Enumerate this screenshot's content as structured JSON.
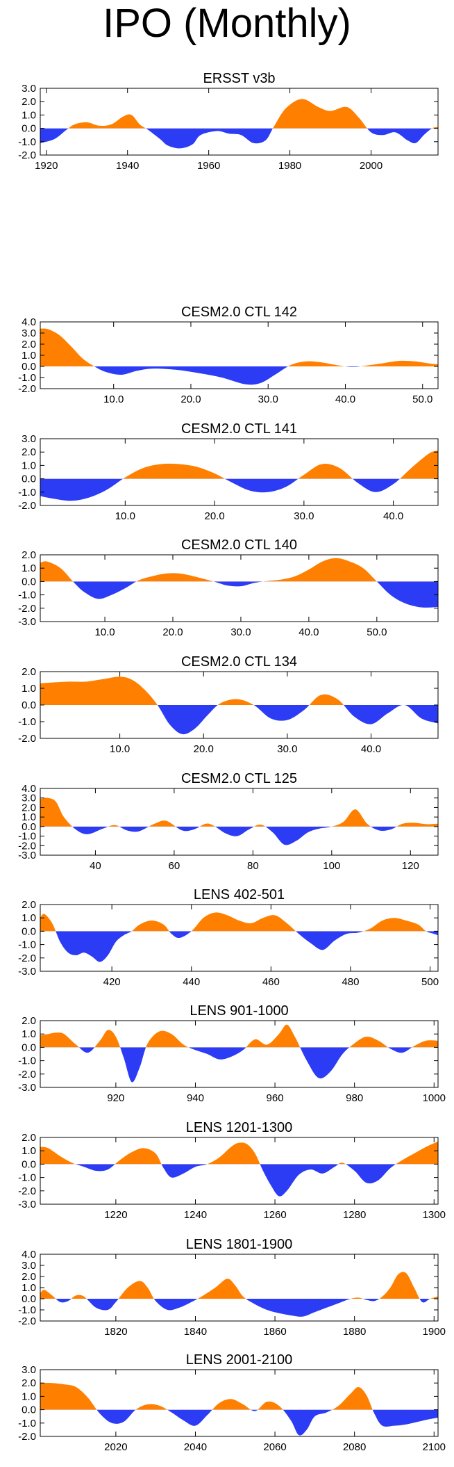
{
  "page_title": "IPO (Monthly)",
  "colors": {
    "positive": "#FF8000",
    "negative": "#2C3CF5",
    "axis": "#000000"
  },
  "chart_data": [
    {
      "type": "area",
      "title": "ERSST v3b",
      "xlim": [
        1918.5,
        2016.5
      ],
      "ylim": [
        -2.0,
        3.0
      ],
      "xticks": [
        1920,
        1940,
        1960,
        1980,
        2000
      ],
      "xtick_labels": [
        "1920",
        "1940",
        "1960",
        "1980",
        "2000"
      ],
      "yticks": [
        -2.0,
        -1.0,
        0.0,
        1.0,
        2.0,
        3.0
      ],
      "ytick_labels": [
        "-2.0",
        "-1.0",
        "0.0",
        "1.0",
        "2.0",
        "3.0"
      ],
      "x": [
        1918.5,
        1922,
        1925,
        1927,
        1930,
        1933,
        1936,
        1939,
        1941,
        1943,
        1945,
        1948,
        1950,
        1953,
        1956,
        1958,
        1962,
        1965,
        1968,
        1971,
        1974,
        1976,
        1979,
        1983,
        1987,
        1990,
        1994,
        1997,
        2000,
        2003,
        2006,
        2009,
        2011,
        2013,
        2015,
        2016.5
      ],
      "y": [
        -1.1,
        -0.8,
        -0.1,
        0.3,
        0.45,
        0.2,
        0.3,
        0.9,
        1.0,
        0.3,
        -0.1,
        -0.8,
        -1.3,
        -1.5,
        -1.2,
        -0.5,
        -0.2,
        -0.4,
        -0.5,
        -1.1,
        -0.9,
        0.1,
        1.5,
        2.2,
        1.6,
        1.3,
        1.6,
        0.8,
        -0.3,
        -0.5,
        -0.3,
        -0.9,
        -1.1,
        -0.5,
        0.0,
        0.1
      ]
    },
    {
      "type": "area",
      "title": "CESM2.0 CTL 142",
      "xlim": [
        0.5,
        52.0
      ],
      "ylim": [
        -2.0,
        4.0
      ],
      "xticks": [
        10,
        20,
        30,
        40,
        50
      ],
      "xtick_labels": [
        "10.0",
        "20.0",
        "30.0",
        "40.0",
        "50.0"
      ],
      "yticks": [
        -2.0,
        -1.0,
        0.0,
        1.0,
        2.0,
        3.0,
        4.0
      ],
      "ytick_labels": [
        "-2.0",
        "-1.0",
        "0.0",
        "1.0",
        "2.0",
        "3.0",
        "4.0"
      ],
      "x": [
        0.5,
        1.5,
        3,
        4.5,
        6,
        7.5,
        9,
        11,
        13,
        15,
        18,
        21,
        24,
        27,
        29,
        31,
        33,
        35,
        37,
        39,
        41,
        43,
        45,
        47,
        49,
        51,
        52
      ],
      "y": [
        3.4,
        3.35,
        2.8,
        1.8,
        0.7,
        0.0,
        -0.5,
        -0.75,
        -0.4,
        -0.2,
        -0.3,
        -0.6,
        -1.0,
        -1.6,
        -1.5,
        -0.7,
        0.15,
        0.45,
        0.35,
        0.1,
        -0.05,
        0.1,
        0.3,
        0.5,
        0.45,
        0.25,
        0.2
      ]
    },
    {
      "type": "area",
      "title": "CESM2.0 CTL 141",
      "xlim": [
        0.5,
        45.0
      ],
      "ylim": [
        -2.0,
        3.0
      ],
      "xticks": [
        10,
        20,
        30,
        40
      ],
      "xtick_labels": [
        "10.0",
        "20.0",
        "30.0",
        "40.0"
      ],
      "yticks": [
        -2.0,
        -1.0,
        0.0,
        1.0,
        2.0,
        3.0
      ],
      "ytick_labels": [
        "-2.0",
        "-1.0",
        "0.0",
        "1.0",
        "2.0",
        "3.0"
      ],
      "x": [
        0.5,
        2,
        4,
        6,
        8,
        10,
        12,
        14,
        16,
        18,
        20,
        22,
        24,
        26,
        28,
        30,
        32,
        34,
        36,
        38,
        40,
        42,
        44,
        45
      ],
      "y": [
        -1.3,
        -1.5,
        -1.65,
        -1.4,
        -0.8,
        0.1,
        0.8,
        1.1,
        1.1,
        0.9,
        0.4,
        -0.3,
        -0.9,
        -1.0,
        -0.6,
        0.3,
        1.1,
        0.8,
        -0.3,
        -1.0,
        -0.4,
        0.8,
        1.9,
        2.1
      ]
    },
    {
      "type": "area",
      "title": "CESM2.0 CTL 140",
      "xlim": [
        0.5,
        59.0
      ],
      "ylim": [
        -3.0,
        2.0
      ],
      "xticks": [
        10,
        20,
        30,
        40,
        50
      ],
      "xtick_labels": [
        "10.0",
        "20.0",
        "30.0",
        "40.0",
        "50.0"
      ],
      "yticks": [
        -3.0,
        -2.0,
        -1.0,
        0.0,
        1.0,
        2.0
      ],
      "ytick_labels": [
        "-3.0",
        "-2.0",
        "-1.0",
        "0.0",
        "1.0",
        "2.0"
      ],
      "x": [
        0.5,
        1.5,
        3.5,
        5.5,
        7,
        9,
        11,
        13,
        15,
        17,
        19,
        21,
        23,
        26,
        28,
        30,
        32,
        34,
        36,
        38,
        40,
        42,
        44,
        46,
        48,
        50,
        52,
        54,
        56,
        57.5,
        59
      ],
      "y": [
        1.4,
        1.5,
        1.0,
        -0.1,
        -0.8,
        -1.3,
        -1.0,
        -0.5,
        0.1,
        0.4,
        0.6,
        0.6,
        0.4,
        0.0,
        -0.3,
        -0.35,
        -0.1,
        0.05,
        0.15,
        0.4,
        0.9,
        1.5,
        1.75,
        1.5,
        1.0,
        0.0,
        -1.0,
        -1.6,
        -1.9,
        -1.95,
        -1.9
      ]
    },
    {
      "type": "area",
      "title": "CESM2.0 CTL 134",
      "xlim": [
        0.5,
        48.0
      ],
      "ylim": [
        -2.0,
        2.0
      ],
      "xticks": [
        10,
        20,
        30,
        40
      ],
      "xtick_labels": [
        "10.0",
        "20.0",
        "30.0",
        "40.0"
      ],
      "yticks": [
        -2.0,
        -1.0,
        0.0,
        1.0,
        2.0
      ],
      "ytick_labels": [
        "-2.0",
        "-1.0",
        "0.0",
        "1.0",
        "2.0"
      ],
      "x": [
        0.5,
        2,
        4,
        6,
        8,
        10,
        11.5,
        13,
        14.5,
        16,
        17.5,
        19,
        20.5,
        22,
        24,
        26,
        28,
        30,
        32,
        34,
        36,
        38,
        40,
        42,
        44,
        46,
        48
      ],
      "y": [
        1.3,
        1.35,
        1.4,
        1.4,
        1.55,
        1.7,
        1.5,
        0.9,
        0.0,
        -1.2,
        -1.75,
        -1.4,
        -0.6,
        0.1,
        0.35,
        0.0,
        -0.8,
        -0.9,
        -0.3,
        0.6,
        0.35,
        -0.7,
        -1.15,
        -0.5,
        0.0,
        -0.8,
        -1.1
      ]
    },
    {
      "type": "area",
      "title": "CESM2.0 CTL 125",
      "xlim": [
        26,
        127
      ],
      "ylim": [
        -3.0,
        4.0
      ],
      "xticks": [
        40,
        60,
        80,
        100,
        120
      ],
      "xtick_labels": [
        "40",
        "60",
        "80",
        "100",
        "120"
      ],
      "yticks": [
        -3.0,
        -2.0,
        -1.0,
        0.0,
        1.0,
        2.0,
        3.0,
        4.0
      ],
      "ytick_labels": [
        "-3.0",
        "-2.0",
        "-1.0",
        "0.0",
        "1.0",
        "2.0",
        "3.0",
        "4.0"
      ],
      "x": [
        26,
        28,
        30,
        32,
        35,
        38,
        42,
        45,
        48,
        51,
        55,
        58,
        62,
        65,
        68,
        70,
        73,
        76,
        79,
        82,
        85,
        88,
        91,
        94,
        97,
        100,
        103,
        106,
        109,
        112,
        115,
        118,
        121,
        124,
        127
      ],
      "y": [
        2.9,
        3.0,
        2.6,
        1.0,
        -0.3,
        -0.8,
        -0.2,
        0.15,
        -0.4,
        -0.5,
        0.3,
        0.6,
        -0.4,
        -0.3,
        0.3,
        0.1,
        -0.7,
        -1.0,
        -0.3,
        0.2,
        -0.6,
        -1.9,
        -1.5,
        -0.6,
        -0.2,
        0.0,
        0.5,
        1.8,
        0.3,
        -0.4,
        -0.3,
        0.3,
        0.4,
        0.25,
        0.3
      ]
    },
    {
      "type": "area",
      "title": "LENS 402-501",
      "xlim": [
        402,
        502
      ],
      "ylim": [
        -3.0,
        2.0
      ],
      "xticks": [
        420,
        440,
        460,
        480,
        500
      ],
      "xtick_labels": [
        "420",
        "440",
        "460",
        "480",
        "500"
      ],
      "yticks": [
        -3.0,
        -2.0,
        -1.0,
        0.0,
        1.0,
        2.0
      ],
      "ytick_labels": [
        "-3.0",
        "-2.0",
        "-1.0",
        "0.0",
        "1.0",
        "2.0"
      ],
      "x": [
        402,
        403,
        405,
        407,
        409,
        411,
        413,
        415,
        417,
        419,
        421,
        423,
        425,
        427,
        430,
        433,
        435,
        437,
        440,
        443,
        446,
        449,
        452,
        455,
        458,
        461,
        464,
        467,
        470,
        473,
        476,
        479,
        482,
        485,
        488,
        491,
        494,
        497,
        499,
        501,
        502
      ],
      "y": [
        1.0,
        1.3,
        0.6,
        -0.8,
        -1.6,
        -1.8,
        -1.6,
        -1.9,
        -2.3,
        -1.8,
        -0.8,
        -0.3,
        0.0,
        0.5,
        0.8,
        0.5,
        -0.2,
        -0.5,
        0.0,
        1.0,
        1.4,
        1.2,
        0.8,
        0.6,
        1.0,
        1.2,
        0.6,
        -0.2,
        -0.9,
        -1.4,
        -0.7,
        -0.2,
        -0.1,
        0.2,
        0.8,
        1.0,
        0.8,
        0.5,
        0.0,
        -0.2,
        -0.3
      ]
    },
    {
      "type": "area",
      "title": "LENS 901-1000",
      "xlim": [
        901,
        1001
      ],
      "ylim": [
        -3.0,
        2.0
      ],
      "xticks": [
        920,
        940,
        960,
        980,
        1000
      ],
      "xtick_labels": [
        "920",
        "940",
        "960",
        "980",
        "1000"
      ],
      "yticks": [
        -3.0,
        -2.0,
        -1.0,
        0.0,
        1.0,
        2.0
      ],
      "ytick_labels": [
        "-3.0",
        "-2.0",
        "-1.0",
        "0.0",
        "1.0",
        "2.0"
      ],
      "x": [
        901,
        903,
        905,
        907,
        910,
        913,
        916,
        918,
        920,
        922,
        924,
        926,
        928,
        931,
        934,
        937,
        940,
        943,
        946,
        949,
        952,
        955,
        958,
        961,
        963,
        965,
        968,
        971,
        974,
        977,
        980,
        983,
        986,
        989,
        992,
        995,
        998,
        1001
      ],
      "y": [
        0.9,
        1.0,
        1.1,
        1.0,
        0.2,
        -0.4,
        0.5,
        1.3,
        0.8,
        -0.8,
        -2.6,
        -1.5,
        0.3,
        1.2,
        1.0,
        0.2,
        -0.2,
        -0.5,
        -0.9,
        -0.7,
        -0.2,
        0.6,
        0.2,
        1.0,
        1.7,
        0.8,
        -1.0,
        -2.3,
        -1.8,
        -0.5,
        0.3,
        0.8,
        0.5,
        -0.1,
        -0.4,
        0.1,
        0.5,
        0.5
      ]
    },
    {
      "type": "area",
      "title": "LENS 1201-1300",
      "xlim": [
        1201,
        1301
      ],
      "ylim": [
        -3.0,
        2.0
      ],
      "xticks": [
        1220,
        1240,
        1260,
        1280,
        1300
      ],
      "xtick_labels": [
        "1220",
        "1240",
        "1260",
        "1280",
        "1300"
      ],
      "yticks": [
        -3.0,
        -2.0,
        -1.0,
        0.0,
        1.0,
        2.0
      ],
      "ytick_labels": [
        "-3.0",
        "-2.0",
        "-1.0",
        "0.0",
        "1.0",
        "2.0"
      ],
      "x": [
        1201,
        1203,
        1206,
        1209,
        1212,
        1215,
        1218,
        1221,
        1224,
        1227,
        1230,
        1232,
        1234,
        1237,
        1240,
        1243,
        1246,
        1249,
        1251,
        1253,
        1255,
        1257,
        1259,
        1261,
        1263,
        1266,
        1269,
        1272,
        1275,
        1277,
        1280,
        1283,
        1286,
        1289,
        1292,
        1295,
        1298,
        1301
      ],
      "y": [
        1.3,
        1.2,
        0.6,
        0.1,
        -0.2,
        -0.5,
        -0.4,
        0.3,
        0.9,
        1.2,
        0.8,
        -0.3,
        -1.0,
        -0.7,
        -0.2,
        0.0,
        0.5,
        1.3,
        1.6,
        1.5,
        0.8,
        -0.5,
        -1.6,
        -2.4,
        -2.0,
        -0.8,
        -0.4,
        -0.7,
        -0.2,
        0.1,
        -0.5,
        -1.4,
        -1.2,
        -0.3,
        0.3,
        0.8,
        1.3,
        1.7
      ]
    },
    {
      "type": "area",
      "title": "LENS 1801-1900",
      "xlim": [
        1801,
        1901
      ],
      "ylim": [
        -2.0,
        4.0
      ],
      "xticks": [
        1820,
        1840,
        1860,
        1880,
        1900
      ],
      "xtick_labels": [
        "1820",
        "1840",
        "1860",
        "1880",
        "1900"
      ],
      "yticks": [
        -2.0,
        -1.0,
        0.0,
        1.0,
        2.0,
        3.0,
        4.0
      ],
      "ytick_labels": [
        "-2.0",
        "-1.0",
        "0.0",
        "1.0",
        "2.0",
        "3.0",
        "4.0"
      ],
      "x": [
        1801,
        1802,
        1804,
        1806,
        1808,
        1810,
        1812,
        1815,
        1818,
        1820,
        1823,
        1826,
        1828,
        1830,
        1833,
        1836,
        1839,
        1842,
        1845,
        1848,
        1850,
        1852,
        1855,
        1858,
        1861,
        1864,
        1867,
        1870,
        1873,
        1876,
        1879,
        1881,
        1883,
        1885,
        1887,
        1889,
        1891,
        1893,
        1895,
        1897,
        1899,
        1901
      ],
      "y": [
        0.5,
        0.8,
        0.3,
        -0.3,
        -0.2,
        0.3,
        0.2,
        -0.8,
        -1.0,
        -0.3,
        1.0,
        1.6,
        1.0,
        -0.2,
        -1.0,
        -0.8,
        -0.3,
        0.3,
        1.0,
        1.8,
        1.2,
        0.2,
        -0.5,
        -1.0,
        -1.3,
        -1.5,
        -1.6,
        -1.2,
        -0.8,
        -0.4,
        0.0,
        0.1,
        -0.1,
        -0.2,
        0.2,
        1.0,
        2.2,
        2.3,
        1.0,
        -0.3,
        0.0,
        0.2
      ]
    },
    {
      "type": "area",
      "title": "LENS 2001-2100",
      "xlim": [
        2001,
        2101
      ],
      "ylim": [
        -2.0,
        3.0
      ],
      "xticks": [
        2020,
        2040,
        2060,
        2080,
        2100
      ],
      "xtick_labels": [
        "2020",
        "2040",
        "2060",
        "2080",
        "2100"
      ],
      "yticks": [
        -2.0,
        -1.0,
        0.0,
        1.0,
        2.0,
        3.0
      ],
      "ytick_labels": [
        "-2.0",
        "-1.0",
        "0.0",
        "1.0",
        "2.0",
        "3.0"
      ],
      "x": [
        2001,
        2004,
        2007,
        2010,
        2013,
        2016,
        2019,
        2022,
        2025,
        2028,
        2031,
        2034,
        2037,
        2040,
        2043,
        2046,
        2049,
        2052,
        2055,
        2058,
        2061,
        2064,
        2066,
        2068,
        2070,
        2073,
        2076,
        2079,
        2081,
        2083,
        2085,
        2087,
        2090,
        2093,
        2096,
        2099,
        2101
      ],
      "y": [
        2.0,
        2.0,
        1.9,
        1.7,
        0.9,
        -0.3,
        -1.0,
        -0.9,
        0.0,
        0.4,
        0.3,
        -0.2,
        -0.8,
        -1.2,
        -0.4,
        0.5,
        0.8,
        0.4,
        -0.1,
        0.6,
        0.3,
        -0.8,
        -1.9,
        -1.5,
        -0.5,
        -0.2,
        0.3,
        1.2,
        1.7,
        1.1,
        -0.3,
        -1.2,
        -1.2,
        -1.1,
        -0.9,
        -0.7,
        -0.6
      ]
    }
  ]
}
